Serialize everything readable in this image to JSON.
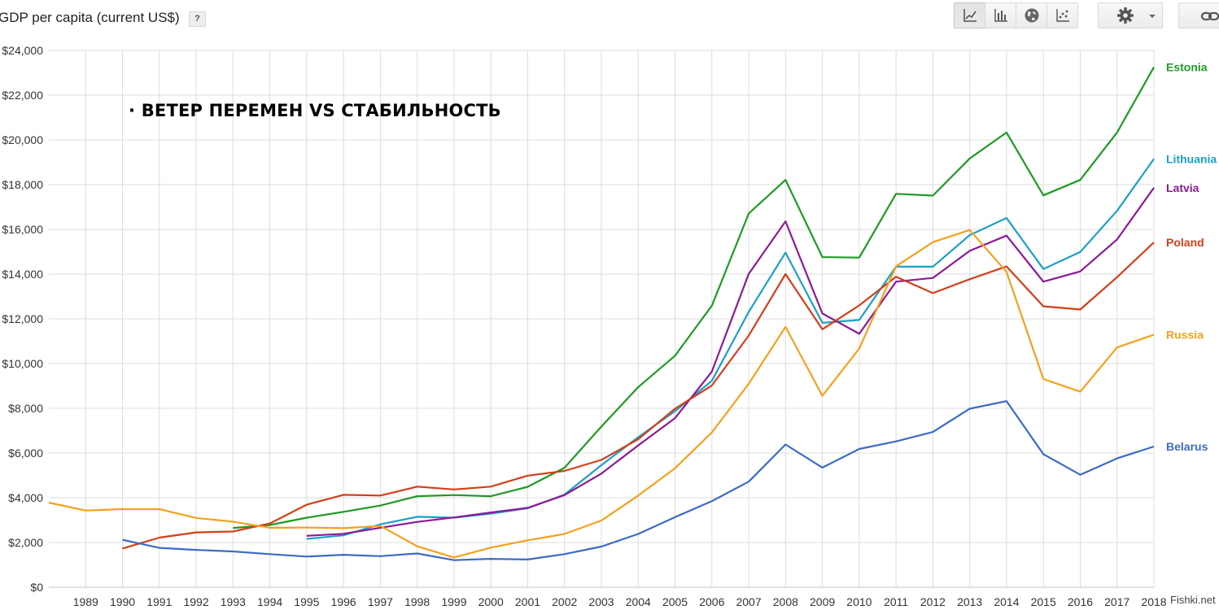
{
  "header": {
    "title": "GDP per capita (current US$)",
    "help_label": "?",
    "view_buttons": [
      {
        "icon": "line-chart-icon",
        "active": true
      },
      {
        "icon": "bar-chart-icon",
        "active": false
      },
      {
        "icon": "globe-map-icon",
        "active": false
      },
      {
        "icon": "scatter-plot-icon",
        "active": false
      }
    ],
    "settings_icon": "gear-icon",
    "link_icon": "link-icon"
  },
  "annotation": "· ВЕТЕР ПЕРЕМЕН VS СТАБИЛЬНОСТЬ",
  "watermark": "Fishki.net",
  "chart_data": {
    "type": "line",
    "title": "GDP per capita (current US$)",
    "ylim": [
      0,
      24000
    ],
    "xlim": [
      1988,
      2018
    ],
    "y_ticks": [
      0,
      2000,
      4000,
      6000,
      8000,
      10000,
      12000,
      14000,
      16000,
      18000,
      20000,
      22000,
      24000
    ],
    "y_tick_labels": [
      "$0",
      "$2,000",
      "$4,000",
      "$6,000",
      "$8,000",
      "$10,000",
      "$12,000",
      "$14,000",
      "$16,000",
      "$18,000",
      "$20,000",
      "$22,000",
      "$24,000"
    ],
    "x_tick_labels": [
      "1989",
      "1990",
      "1991",
      "1992",
      "1993",
      "1994",
      "1995",
      "1996",
      "1997",
      "1998",
      "1999",
      "2000",
      "2001",
      "2002",
      "2003",
      "2004",
      "2005",
      "2006",
      "2007",
      "2008",
      "2009",
      "2010",
      "2011",
      "2012",
      "2013",
      "2014",
      "2015",
      "2016",
      "2017",
      "2018"
    ],
    "grid": true,
    "legend": "inline-right",
    "series": [
      {
        "name": "Estonia",
        "color": "#1f9a25",
        "x": [
          1993,
          1994,
          1995,
          1996,
          1997,
          1998,
          1999,
          2000,
          2001,
          2002,
          2003,
          2004,
          2005,
          2006,
          2007,
          2008,
          2009,
          2010,
          2011,
          2012,
          2013,
          2014,
          2015,
          2016,
          2017,
          2018
        ],
        "values": [
          2650,
          2780,
          3110,
          3370,
          3650,
          4070,
          4120,
          4070,
          4490,
          5340,
          7180,
          8950,
          10350,
          12590,
          16710,
          18210,
          14760,
          14740,
          17590,
          17510,
          19170,
          20330,
          17520,
          18210,
          20330,
          23250
        ]
      },
      {
        "name": "Lithuania",
        "color": "#1aa0c8",
        "x": [
          1995,
          1996,
          1997,
          1998,
          1999,
          2000,
          2001,
          2002,
          2003,
          2004,
          2005,
          2006,
          2007,
          2008,
          2009,
          2010,
          2011,
          2012,
          2013,
          2014,
          2015,
          2016,
          2017,
          2018
        ],
        "values": [
          2160,
          2320,
          2810,
          3150,
          3110,
          3290,
          3530,
          4140,
          5460,
          6710,
          7870,
          9230,
          12310,
          14960,
          11820,
          11950,
          14330,
          14330,
          15740,
          16510,
          14230,
          14990,
          16830,
          19150
        ]
      },
      {
        "name": "Latvia",
        "color": "#8c1a96",
        "x": [
          1995,
          1996,
          1997,
          1998,
          1999,
          2000,
          2001,
          2002,
          2003,
          2004,
          2005,
          2006,
          2007,
          2008,
          2009,
          2010,
          2011,
          2012,
          2013,
          2014,
          2015,
          2016,
          2017,
          2018
        ],
        "values": [
          2300,
          2390,
          2660,
          2920,
          3120,
          3340,
          3550,
          4120,
          5080,
          6340,
          7560,
          9640,
          14010,
          16360,
          12240,
          11330,
          13660,
          13830,
          15040,
          15720,
          13660,
          14120,
          15550,
          17860
        ]
      },
      {
        "name": "Poland",
        "color": "#d23f18",
        "x": [
          1990,
          1991,
          1992,
          1993,
          1994,
          1995,
          1996,
          1997,
          1998,
          1999,
          2000,
          2001,
          2002,
          2003,
          2004,
          2005,
          2006,
          2007,
          2008,
          2009,
          2010,
          2011,
          2012,
          2013,
          2014,
          2015,
          2016,
          2017,
          2018
        ],
        "values": [
          1730,
          2220,
          2450,
          2490,
          2850,
          3690,
          4130,
          4100,
          4500,
          4370,
          4500,
          4990,
          5200,
          5690,
          6620,
          7980,
          9020,
          11250,
          14000,
          11530,
          12600,
          13880,
          13150,
          13770,
          14340,
          12560,
          12420,
          13860,
          15420
        ]
      },
      {
        "name": "Russia",
        "color": "#f4a11d",
        "x": [
          1988,
          1989,
          1990,
          1991,
          1992,
          1993,
          1994,
          1995,
          1996,
          1997,
          1998,
          1999,
          2000,
          2001,
          2002,
          2003,
          2004,
          2005,
          2006,
          2007,
          2008,
          2009,
          2010,
          2011,
          2012,
          2013,
          2014,
          2015,
          2016,
          2017,
          2018
        ],
        "values": [
          3780,
          3430,
          3490,
          3490,
          3100,
          2930,
          2660,
          2670,
          2640,
          2740,
          1830,
          1330,
          1770,
          2100,
          2380,
          2980,
          4100,
          5320,
          6920,
          9100,
          11640,
          8560,
          10670,
          14350,
          15430,
          15970,
          14100,
          9310,
          8740,
          10720,
          11290
        ]
      },
      {
        "name": "Belarus",
        "color": "#3b6bc5",
        "x": [
          1990,
          1991,
          1992,
          1993,
          1994,
          1995,
          1996,
          1997,
          1998,
          1999,
          2000,
          2001,
          2002,
          2003,
          2004,
          2005,
          2006,
          2007,
          2008,
          2009,
          2010,
          2011,
          2012,
          2013,
          2014,
          2015,
          2016,
          2017,
          2018
        ],
        "values": [
          2120,
          1760,
          1670,
          1600,
          1480,
          1370,
          1450,
          1390,
          1510,
          1210,
          1270,
          1240,
          1480,
          1820,
          2380,
          3130,
          3850,
          4720,
          6380,
          5350,
          6180,
          6520,
          6940,
          7980,
          8320,
          5950,
          5030,
          5760,
          6290
        ]
      }
    ]
  }
}
